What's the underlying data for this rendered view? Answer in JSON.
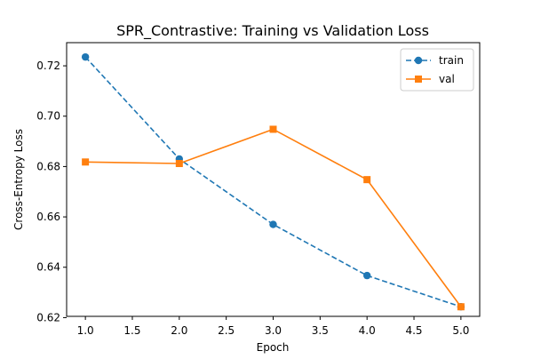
{
  "chart_data": {
    "type": "line",
    "title": "SPR_Contrastive: Training vs Validation Loss",
    "xlabel": "Epoch",
    "ylabel": "Cross-Entropy Loss",
    "xlim": [
      0.8,
      5.2
    ],
    "ylim": [
      0.6205,
      0.7292
    ],
    "x_ticks": [
      "1.0",
      "1.5",
      "2.0",
      "2.5",
      "3.0",
      "3.5",
      "4.0",
      "4.5",
      "5.0"
    ],
    "y_ticks": [
      "0.62",
      "0.64",
      "0.66",
      "0.68",
      "0.70",
      "0.72"
    ],
    "grid": false,
    "legend_position": "top-right",
    "x": [
      1,
      2,
      3,
      4,
      5
    ],
    "series": [
      {
        "name": "train",
        "values": [
          0.7235,
          0.683,
          0.657,
          0.6367,
          0.6243
        ],
        "color": "#1f77b4",
        "linestyle": "dashed",
        "marker": "circle"
      },
      {
        "name": "val",
        "values": [
          0.6818,
          0.6812,
          0.6948,
          0.6748,
          0.6243
        ],
        "color": "#ff7f0e",
        "linestyle": "solid",
        "marker": "square"
      }
    ]
  }
}
